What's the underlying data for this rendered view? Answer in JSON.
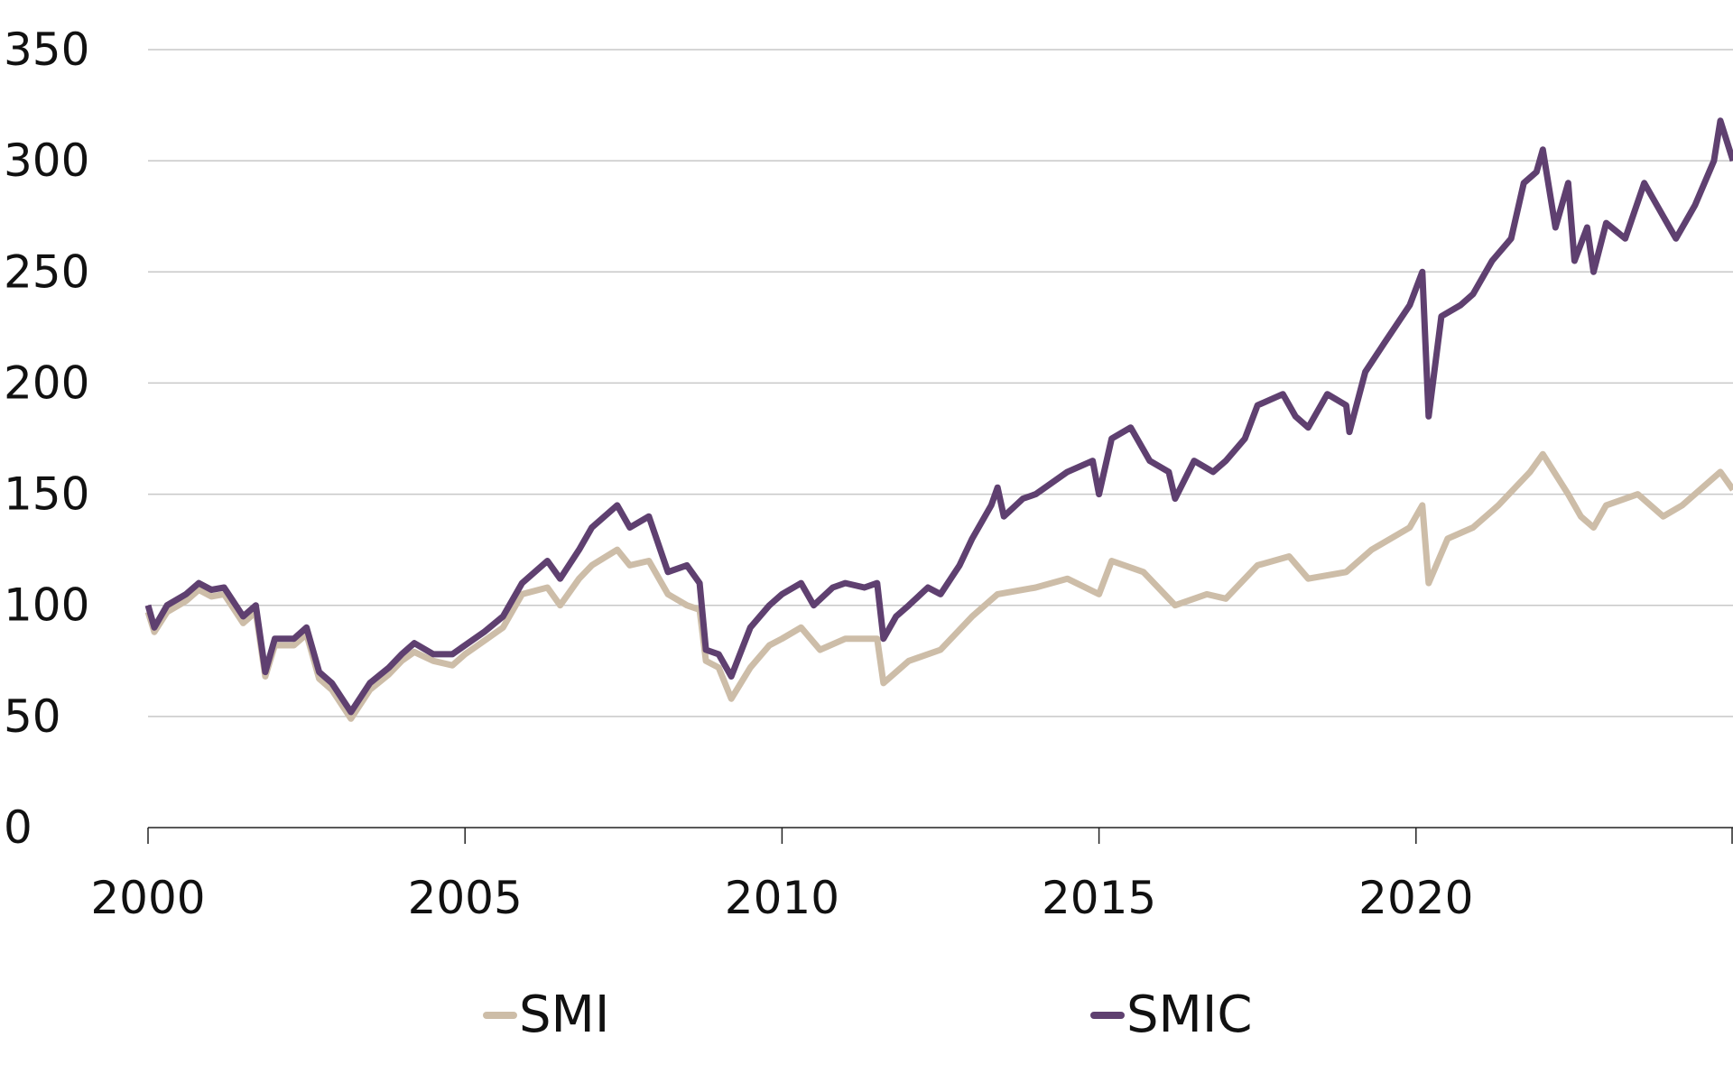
{
  "chart_data": {
    "type": "line",
    "title": "",
    "xlabel": "",
    "ylabel": "",
    "xlim": [
      2000,
      2025
    ],
    "ylim": [
      0,
      350
    ],
    "grid": "horizontal",
    "legend_placement": "bottom",
    "x_ticks": [
      "2000",
      "2005",
      "2010",
      "2015",
      "2020"
    ],
    "y_ticks": [
      "0",
      "50",
      "100",
      "150",
      "200",
      "250",
      "300",
      "350"
    ],
    "series": [
      {
        "name": "SMI",
        "color": "#cdbda8",
        "x": [
          2000,
          2000.1,
          2000.3,
          2000.6,
          2000.8,
          2001.0,
          2001.2,
          2001.5,
          2001.7,
          2001.85,
          2002.0,
          2002.3,
          2002.5,
          2002.7,
          2002.9,
          2003.2,
          2003.5,
          2003.8,
          2004.0,
          2004.2,
          2004.5,
          2004.8,
          2005.0,
          2005.3,
          2005.6,
          2005.9,
          2006.3,
          2006.5,
          2006.8,
          2007.0,
          2007.4,
          2007.6,
          2007.9,
          2008.2,
          2008.5,
          2008.7,
          2008.8,
          2009.0,
          2009.2,
          2009.5,
          2009.8,
          2010.0,
          2010.3,
          2010.6,
          2011.0,
          2011.5,
          2011.6,
          2012.0,
          2012.5,
          2013.0,
          2013.4,
          2014.0,
          2014.5,
          2015.0,
          2015.2,
          2015.7,
          2016.2,
          2016.7,
          2017.0,
          2017.5,
          2018.0,
          2018.3,
          2018.9,
          2019.3,
          2019.9,
          2020.1,
          2020.2,
          2020.5,
          2020.9,
          2021.3,
          2021.8,
          2022.0,
          2022.4,
          2022.6,
          2022.8,
          2023.0,
          2023.5,
          2023.9,
          2024.2,
          2024.8,
          2025.0
        ],
        "y": [
          97,
          88,
          97,
          102,
          107,
          104,
          105,
          92,
          97,
          68,
          82,
          82,
          87,
          67,
          62,
          49,
          62,
          69,
          75,
          79,
          75,
          73,
          78,
          84,
          90,
          105,
          108,
          100,
          112,
          118,
          125,
          118,
          120,
          105,
          100,
          98,
          75,
          72,
          58,
          72,
          82,
          85,
          90,
          80,
          85,
          85,
          65,
          75,
          80,
          95,
          105,
          108,
          112,
          105,
          120,
          115,
          100,
          105,
          103,
          118,
          122,
          112,
          115,
          125,
          135,
          145,
          110,
          130,
          135,
          145,
          160,
          168,
          150,
          140,
          135,
          145,
          150,
          140,
          145,
          160,
          152
        ]
      },
      {
        "name": "SMIC",
        "color": "#5f4070",
        "x": [
          2000,
          2000.1,
          2000.3,
          2000.6,
          2000.8,
          2001.0,
          2001.2,
          2001.5,
          2001.7,
          2001.85,
          2002.0,
          2002.3,
          2002.5,
          2002.7,
          2002.9,
          2003.2,
          2003.5,
          2003.8,
          2004.0,
          2004.2,
          2004.5,
          2004.8,
          2005.0,
          2005.3,
          2005.6,
          2005.9,
          2006.3,
          2006.5,
          2006.8,
          2007.0,
          2007.4,
          2007.6,
          2007.9,
          2008.2,
          2008.5,
          2008.7,
          2008.8,
          2009.0,
          2009.2,
          2009.5,
          2009.8,
          2010.0,
          2010.3,
          2010.5,
          2010.8,
          2011.0,
          2011.3,
          2011.5,
          2011.6,
          2011.8,
          2012.0,
          2012.3,
          2012.5,
          2012.8,
          2013.0,
          2013.3,
          2013.4,
          2013.5,
          2013.8,
          2014.0,
          2014.5,
          2014.9,
          2015.0,
          2015.2,
          2015.5,
          2015.8,
          2016.1,
          2016.2,
          2016.5,
          2016.8,
          2017.0,
          2017.3,
          2017.5,
          2017.9,
          2018.1,
          2018.3,
          2018.6,
          2018.9,
          2018.95,
          2019.2,
          2019.5,
          2019.9,
          2020.1,
          2020.2,
          2020.4,
          2020.7,
          2020.9,
          2021.2,
          2021.5,
          2021.7,
          2021.9,
          2022.0,
          2022.2,
          2022.4,
          2022.5,
          2022.7,
          2022.8,
          2023.0,
          2023.3,
          2023.6,
          2023.9,
          2024.1,
          2024.4,
          2024.7,
          2024.8,
          2025.0
        ],
        "y": [
          100,
          90,
          100,
          105,
          110,
          107,
          108,
          95,
          100,
          70,
          85,
          85,
          90,
          70,
          65,
          52,
          65,
          72,
          78,
          83,
          78,
          78,
          82,
          88,
          95,
          110,
          120,
          112,
          125,
          135,
          145,
          135,
          140,
          115,
          118,
          110,
          80,
          78,
          68,
          90,
          100,
          105,
          110,
          100,
          108,
          110,
          108,
          110,
          85,
          95,
          100,
          108,
          105,
          118,
          130,
          145,
          153,
          140,
          148,
          150,
          160,
          165,
          150,
          175,
          180,
          165,
          160,
          148,
          165,
          160,
          165,
          175,
          190,
          195,
          185,
          180,
          195,
          190,
          178,
          205,
          218,
          235,
          250,
          185,
          230,
          235,
          240,
          255,
          265,
          290,
          295,
          305,
          270,
          290,
          255,
          270,
          250,
          272,
          265,
          290,
          275,
          265,
          280,
          300,
          318,
          300
        ]
      }
    ]
  }
}
